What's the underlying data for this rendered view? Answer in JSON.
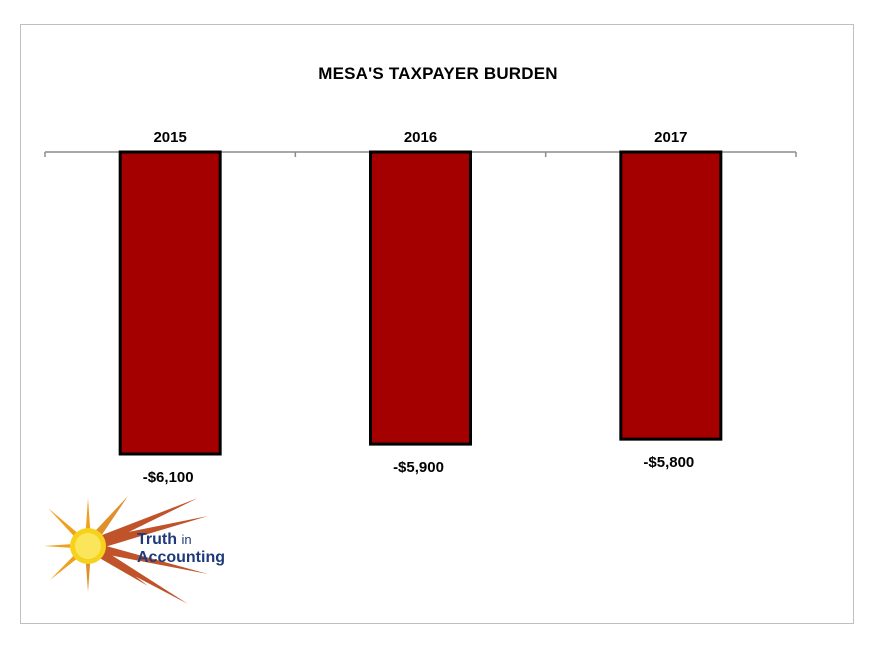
{
  "chart_data": {
    "type": "bar",
    "title": "MESA'S TAXPAYER BURDEN",
    "categories": [
      "2015",
      "2016",
      "2017"
    ],
    "values": [
      -6100,
      -5900,
      -5800
    ],
    "value_labels": [
      "-$6,100",
      "-$5,900",
      "-$5,800"
    ],
    "ylim": [
      -6100,
      0
    ],
    "bar_color": "#a50000",
    "bar_edge_color": "#000000",
    "grid": false,
    "xaxis_position": "top"
  },
  "logo": {
    "word1": "Truth",
    "word2": "in",
    "word3": "Accounting",
    "text_color": "#1f3a7a"
  }
}
